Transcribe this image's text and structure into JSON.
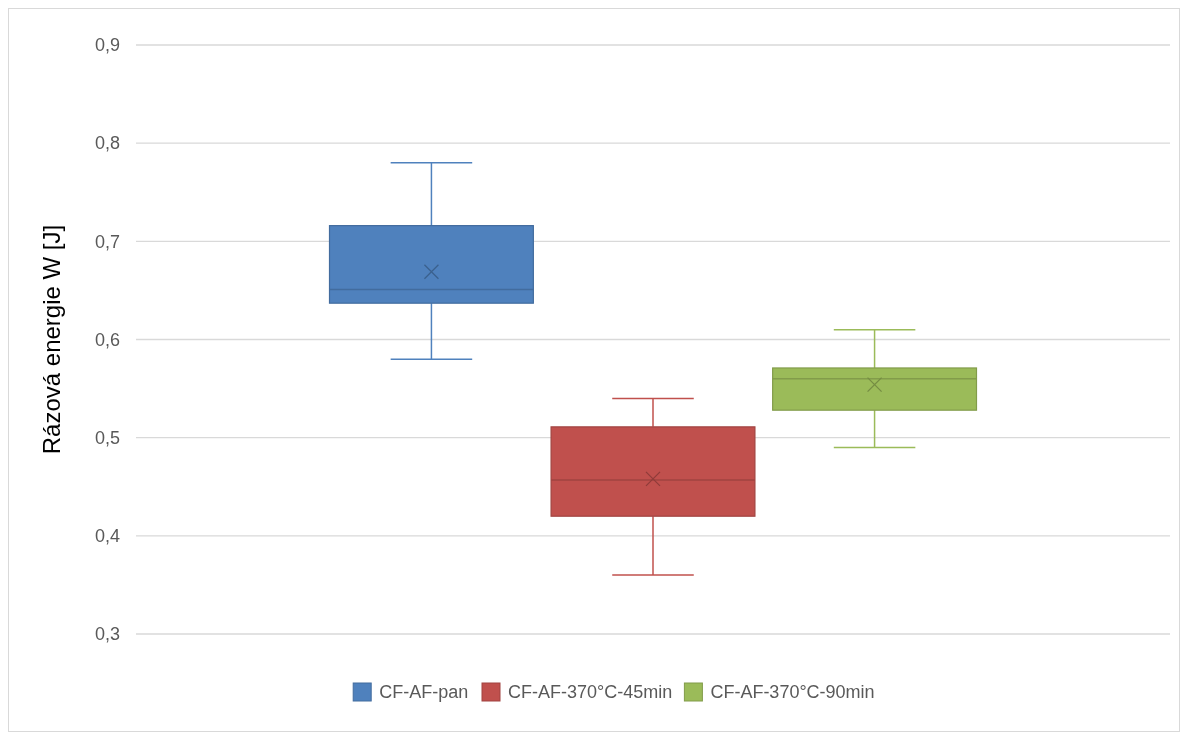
{
  "chart_data": {
    "type": "box",
    "ylabel": "Rázová energie W [J]",
    "categories": [
      null
    ],
    "ylim": [
      0.3,
      0.9
    ],
    "yticks": [
      {
        "value": 0.3,
        "label": "0,3"
      },
      {
        "value": 0.4,
        "label": "0,4"
      },
      {
        "value": 0.5,
        "label": "0,5"
      },
      {
        "value": 0.6,
        "label": "0,6"
      },
      {
        "value": 0.7,
        "label": "0,7"
      },
      {
        "value": 0.8,
        "label": "0,8"
      },
      {
        "value": 0.9,
        "label": "0,9"
      }
    ],
    "grid": "y",
    "legend": "bottom",
    "marker": "cross",
    "series": [
      {
        "name": "CF-AF-pan",
        "color": "#4f81bd",
        "boxes": [
          {
            "low": 0.58,
            "q1": 0.637,
            "median": 0.651,
            "q3": 0.716,
            "high": 0.78,
            "mean": 0.669
          }
        ]
      },
      {
        "name": "CF-AF-370°C-45min",
        "color": "#c0504d",
        "boxes": [
          {
            "low": 0.36,
            "q1": 0.42,
            "median": 0.457,
            "q3": 0.511,
            "high": 0.54,
            "mean": 0.458
          }
        ]
      },
      {
        "name": "CF-AF-370°C-90min",
        "color": "#9bbb59",
        "boxes": [
          {
            "low": 0.49,
            "q1": 0.528,
            "median": 0.56,
            "q3": 0.571,
            "high": 0.61,
            "mean": 0.554
          }
        ]
      }
    ]
  }
}
